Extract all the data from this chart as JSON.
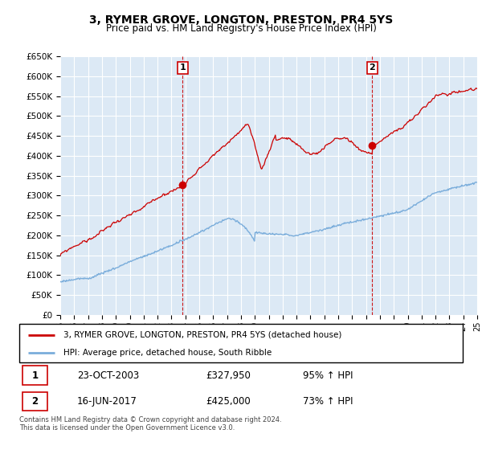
{
  "title": "3, RYMER GROVE, LONGTON, PRESTON, PR4 5YS",
  "subtitle": "Price paid vs. HM Land Registry's House Price Index (HPI)",
  "legend_line1": "3, RYMER GROVE, LONGTON, PRESTON, PR4 5YS (detached house)",
  "legend_line2": "HPI: Average price, detached house, South Ribble",
  "annotation1_date": "23-OCT-2003",
  "annotation1_price": "£327,950",
  "annotation1_hpi": "95% ↑ HPI",
  "annotation2_date": "16-JUN-2017",
  "annotation2_price": "£425,000",
  "annotation2_hpi": "73% ↑ HPI",
  "footer": "Contains HM Land Registry data © Crown copyright and database right 2024.\nThis data is licensed under the Open Government Licence v3.0.",
  "sale1_year": 2003.8,
  "sale1_price": 327950,
  "sale2_year": 2017.45,
  "sale2_price": 425000,
  "hpi_color": "#7aaddb",
  "price_color": "#cc0000",
  "plot_bg_color": "#dce9f5",
  "ylim_min": 0,
  "ylim_max": 650000,
  "xmin": 1995,
  "xmax": 2025
}
